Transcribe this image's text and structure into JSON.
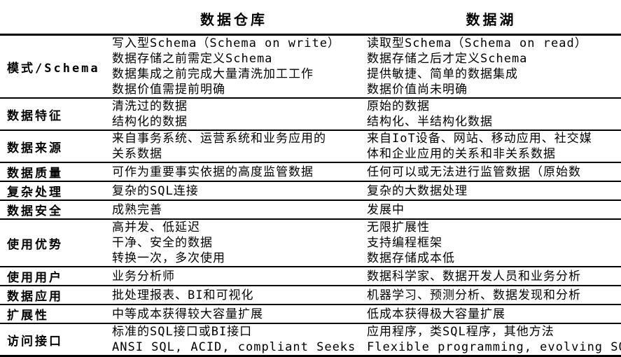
{
  "table": {
    "header": {
      "warehouse": "数据仓库",
      "lake": "数据湖"
    },
    "rows": [
      {
        "label": "模式/Schema",
        "warehouse": [
          "写入型Schema（Schema on write）",
          "数据存储之前需定义Schema",
          "数据集成之前完成大量清洗加工工作",
          "数据价值需提前明确"
        ],
        "lake": [
          "读取型Schema（Schema on read）",
          "数据存储之后才定义Schema",
          "提供敏捷、简单的数据集成",
          "数据价值尚未明确"
        ]
      },
      {
        "label": "数据特征",
        "warehouse": [
          "清洗过的数据",
          "结构化的数据"
        ],
        "lake": [
          "原始的数据",
          "结构化、半结构化数据"
        ]
      },
      {
        "label": "数据来源",
        "warehouse": [
          "来自事务系统、运营系统和业务应用的",
          "关系数据"
        ],
        "lake": [
          "来自IoT设备、网站、移动应用、社交媒",
          "体和企业应用的关系和非关系数据"
        ]
      },
      {
        "label": "数据质量",
        "warehouse": [
          "可作为重要事实依据的高度监管数据"
        ],
        "lake": [
          "任何可以或无法进行监管数据（原始数"
        ]
      },
      {
        "label": "复杂处理",
        "warehouse": [
          "复杂的SQL连接"
        ],
        "lake": [
          "复杂的大数据处理"
        ]
      },
      {
        "label": "数据安全",
        "warehouse": [
          "成熟完善"
        ],
        "lake": [
          "发展中"
        ]
      },
      {
        "label": "使用优势",
        "warehouse": [
          "高并发、低延迟",
          "干净、安全的数据",
          "转换一次，多次使用"
        ],
        "lake": [
          "无限扩展性",
          "支持编程框架",
          "数据存储成本低"
        ]
      },
      {
        "label": "使用用户",
        "warehouse": [
          "业务分析师"
        ],
        "lake": [
          "数据科学家、数据开发人员和业务分析"
        ]
      },
      {
        "label": "数据应用",
        "warehouse": [
          "批处理报表、BI和可视化"
        ],
        "lake": [
          "机器学习、预测分析、数据发现和分析"
        ]
      },
      {
        "label": "扩展性",
        "warehouse": [
          "中等成本获得较大容量扩展"
        ],
        "lake": [
          "低成本获得极大容量扩展"
        ]
      },
      {
        "label": "访问接口",
        "warehouse": [
          "标准的SQL接口或BI接口",
          "ANSI SQL, ACID, compliant Seeks"
        ],
        "lake": [
          "应用程序，类SQL程序，其他方法",
          "Flexible programming, evolving SQL"
        ]
      }
    ]
  }
}
